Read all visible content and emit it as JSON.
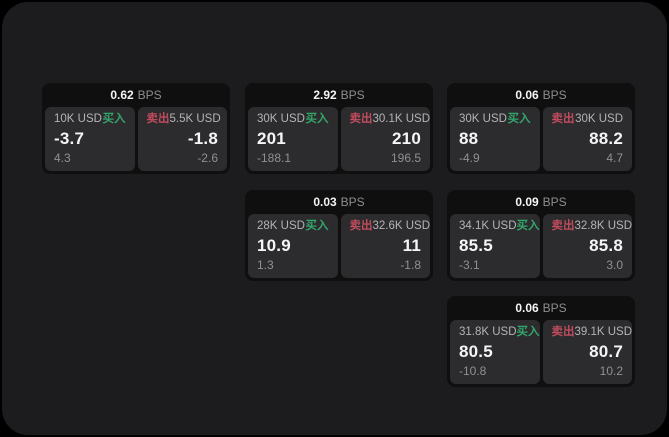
{
  "app": {
    "outer_bg": "#000000",
    "panel_bg": "#1c1c1e"
  },
  "colors": {
    "card_bg": "#0f0f10",
    "tile_bg": "#2c2c2e",
    "buy_green": "#34a56b",
    "sell_red": "#c04b5d",
    "primary_text": "#f5f5f6",
    "amount_text": "#b4b4b6",
    "muted_text": "#8e8e90"
  },
  "labels": {
    "bps": "BPS",
    "buy": "买入",
    "sell": "卖出"
  },
  "cards": [
    {
      "bps": "0.62",
      "buy": {
        "amount": "10K USD",
        "value": "-3.7",
        "secondary": "4.3"
      },
      "sell": {
        "amount": "5.5K USD",
        "value": "-1.8",
        "secondary": "-2.6"
      }
    },
    {
      "bps": "2.92",
      "buy": {
        "amount": "30K USD",
        "value": "201",
        "secondary": "-188.1"
      },
      "sell": {
        "amount": "30.1K USD",
        "value": "210",
        "secondary": "196.5"
      }
    },
    {
      "bps": "0.06",
      "buy": {
        "amount": "30K USD",
        "value": "88",
        "secondary": "-4.9"
      },
      "sell": {
        "amount": "30K USD",
        "value": "88.2",
        "secondary": "4.7"
      }
    },
    {
      "bps": "0.03",
      "buy": {
        "amount": "28K USD",
        "value": "10.9",
        "secondary": "1.3"
      },
      "sell": {
        "amount": "32.6K USD",
        "value": "11",
        "secondary": "-1.8"
      }
    },
    {
      "bps": "0.09",
      "buy": {
        "amount": "34.1K USD",
        "value": "85.5",
        "secondary": "-3.1"
      },
      "sell": {
        "amount": "32.8K USD",
        "value": "85.8",
        "secondary": "3.0"
      }
    },
    {
      "bps": "0.06",
      "buy": {
        "amount": "31.8K USD",
        "value": "80.5",
        "secondary": "-10.8"
      },
      "sell": {
        "amount": "39.1K USD",
        "value": "80.7",
        "secondary": "10.2"
      }
    }
  ]
}
